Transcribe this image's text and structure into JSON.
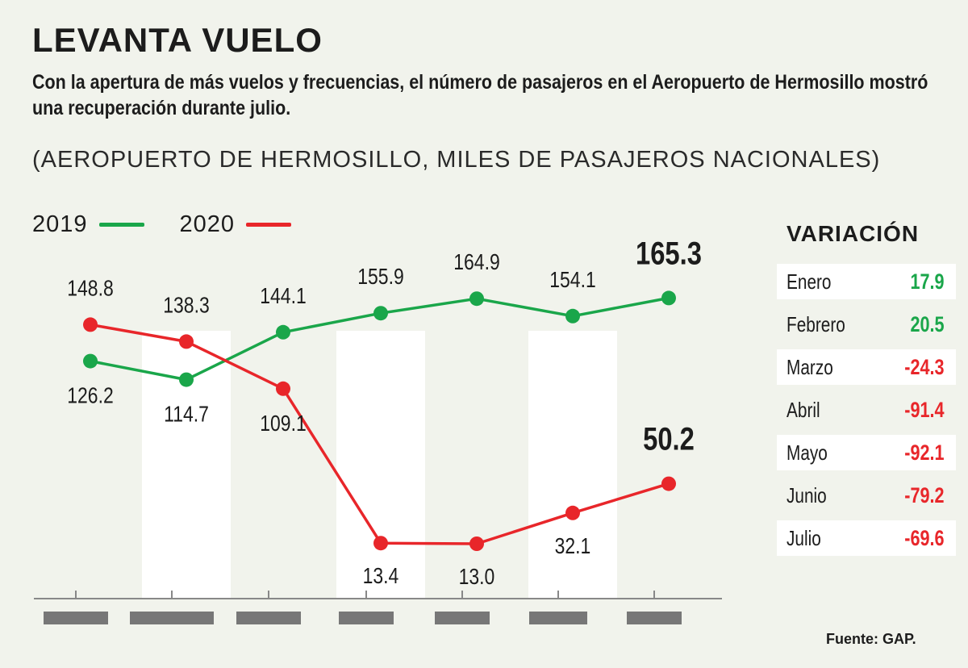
{
  "header": {
    "title": "LEVANTA VUELO",
    "subtitle": "Con la apertura de más vuelos y frecuencias, el número de pasajeros en el Aeropuerto de Hermosillo mostró una recuperación durante julio.",
    "units": "(AEROPUERTO DE HERMOSILLO, MILES DE PASAJEROS NACIONALES)"
  },
  "legend": [
    {
      "label": "2019",
      "color": "#1aa64a"
    },
    {
      "label": "2020",
      "color": "#e8262a"
    }
  ],
  "chart_data": {
    "type": "line",
    "categories": [
      "",
      "",
      "",
      "",
      "",
      "",
      ""
    ],
    "series": [
      {
        "name": "2019",
        "color": "#1aa64a",
        "values": [
          126.2,
          114.7,
          144.1,
          155.9,
          164.9,
          154.1,
          165.3
        ]
      },
      {
        "name": "2020",
        "color": "#e8262a",
        "values": [
          148.8,
          138.3,
          109.1,
          13.4,
          13.0,
          32.1,
          50.2
        ]
      }
    ],
    "ylim": [
      0,
      180
    ],
    "grid": false,
    "legend_position": "top-left"
  },
  "variation": {
    "title": "VARIACIÓN",
    "rows": [
      {
        "month": "Enero",
        "value": "17.9",
        "color": "#1aa64a"
      },
      {
        "month": "Febrero",
        "value": "20.5",
        "color": "#1aa64a"
      },
      {
        "month": "Marzo",
        "value": "-24.3",
        "color": "#e8262a"
      },
      {
        "month": "Abril",
        "value": "-91.4",
        "color": "#e8262a"
      },
      {
        "month": "Mayo",
        "value": "-92.1",
        "color": "#e8262a"
      },
      {
        "month": "Junio",
        "value": "-79.2",
        "color": "#e8262a"
      },
      {
        "month": "Julio",
        "value": "-69.6",
        "color": "#e8262a"
      }
    ]
  },
  "footer": {
    "source": "Fuente: GAP."
  }
}
